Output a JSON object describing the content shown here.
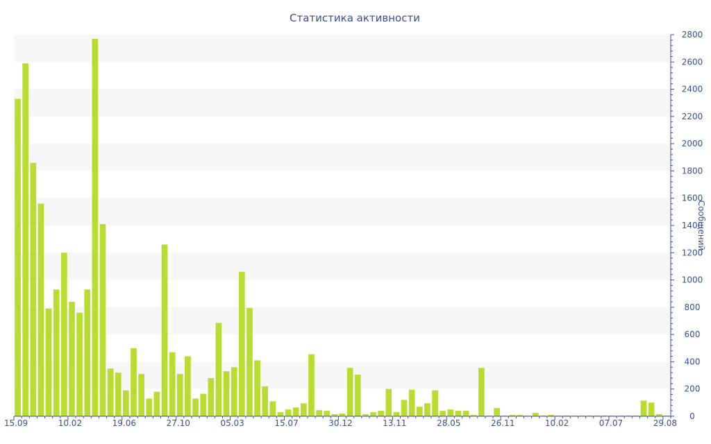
{
  "chart_data": {
    "type": "bar",
    "title": "Статистика активности",
    "ylabel": "Сообщений",
    "ylim": [
      0,
      2800
    ],
    "yticks": [
      0,
      200,
      400,
      600,
      800,
      1000,
      1200,
      1400,
      1600,
      1800,
      2000,
      2200,
      2400,
      2600,
      2800
    ],
    "y_axis_side": "right",
    "xtick_labels": [
      "15.09",
      "10.02",
      "19.06",
      "27.10",
      "05.03",
      "15.07",
      "30.12",
      "13.11",
      "28.05",
      "26.11",
      "10.02",
      "07.07",
      "29.08"
    ],
    "bar_color": "#b9dc32",
    "band_color": "#f7f7f7",
    "axis_color": "#3c4e8c",
    "values": [
      2330,
      2590,
      1860,
      1560,
      790,
      930,
      1200,
      840,
      760,
      930,
      2770,
      1410,
      350,
      320,
      190,
      500,
      310,
      130,
      180,
      1260,
      470,
      310,
      440,
      130,
      165,
      280,
      685,
      330,
      360,
      1060,
      795,
      410,
      220,
      110,
      30,
      50,
      65,
      95,
      455,
      45,
      40,
      15,
      20,
      355,
      305,
      15,
      30,
      40,
      200,
      30,
      120,
      195,
      70,
      95,
      190,
      40,
      50,
      40,
      40,
      10,
      355,
      5,
      60,
      5,
      10,
      10,
      5,
      25,
      5,
      10,
      5,
      5,
      5,
      5,
      5,
      5,
      5,
      5,
      5,
      5,
      5,
      115,
      100,
      15,
      5
    ]
  }
}
